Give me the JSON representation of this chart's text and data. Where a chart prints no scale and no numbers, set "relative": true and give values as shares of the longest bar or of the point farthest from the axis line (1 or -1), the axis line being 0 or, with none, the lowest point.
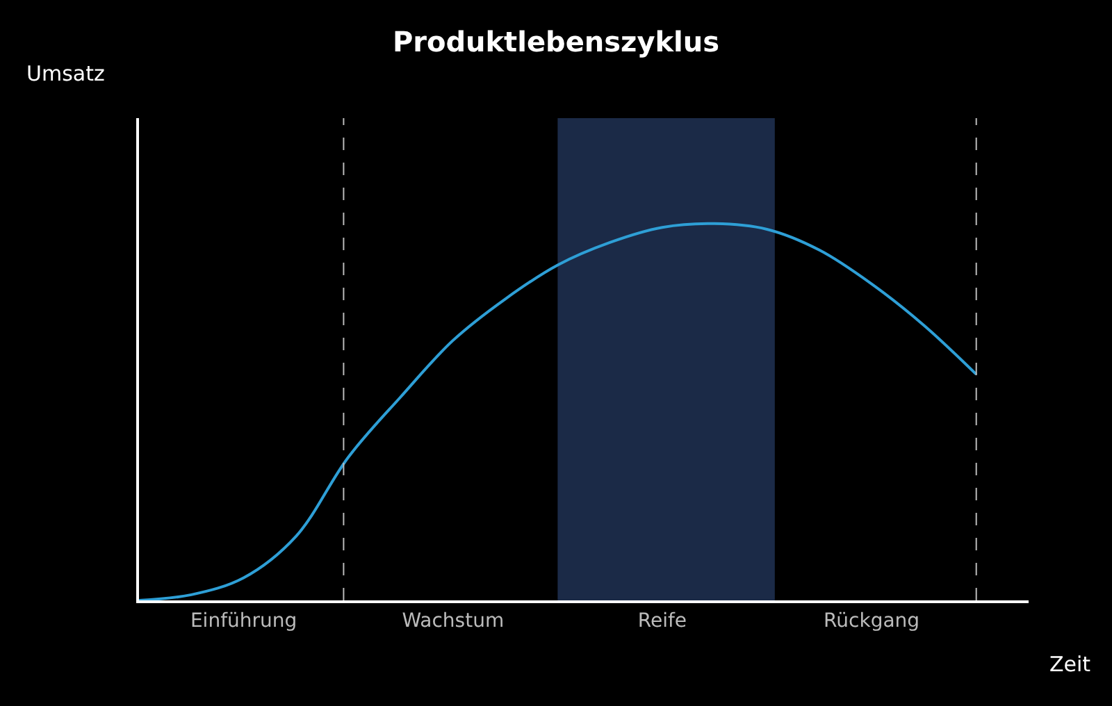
{
  "chart_data": {
    "type": "line",
    "title": "Produktlebenszyklus",
    "xlabel": "Zeit",
    "annotations": [
      "Umsatz"
    ],
    "relative": true,
    "categories": [
      null,
      null,
      "Einführung",
      null,
      null,
      null,
      "Wachstum",
      null,
      null,
      null,
      "Reife",
      null,
      null,
      null,
      "Rückgang",
      null,
      null
    ],
    "series": [
      {
        "color": "#2e9fd6",
        "values": [
          0,
          0.015,
          0.06,
          0.17,
          0.38,
          0.54,
          0.69,
          0.8,
          0.89,
          0.95,
          0.99,
          1.0,
          0.985,
          0.93,
          0.84,
          0.73,
          0.6
        ]
      }
    ],
    "marker": "none",
    "line_style": "solid"
  }
}
